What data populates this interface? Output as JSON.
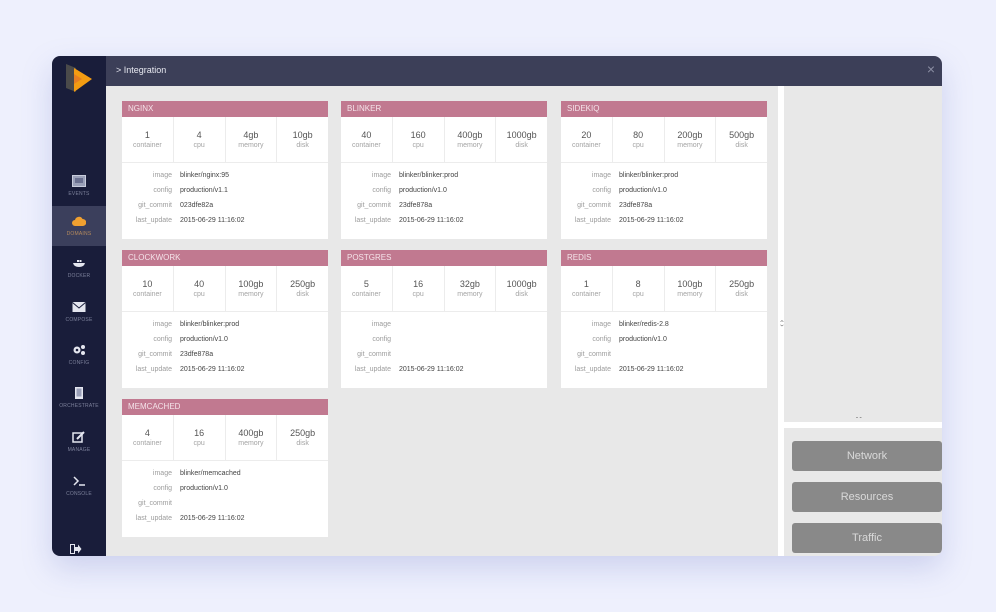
{
  "header": {
    "breadcrumb": "> Integration",
    "close_icon": "×"
  },
  "sidebar": {
    "items": [
      {
        "label": "EVENTS",
        "icon": "events-icon"
      },
      {
        "label": "DOMAINS",
        "icon": "cloud-icon",
        "active": true
      },
      {
        "label": "DOCKER",
        "icon": "docker-icon"
      },
      {
        "label": "COMPOSE",
        "icon": "envelope-icon"
      },
      {
        "label": "CONFIG",
        "icon": "gears-icon"
      },
      {
        "label": "ORCHESTRATE",
        "icon": "tablet-icon"
      },
      {
        "label": "MANAGE",
        "icon": "edit-icon"
      },
      {
        "label": "CONSOLE",
        "icon": "terminal-icon"
      }
    ],
    "logout_icon": "logout-icon"
  },
  "stat_labels": [
    "container",
    "cpu",
    "memory",
    "disk"
  ],
  "detail_labels": [
    "image",
    "config",
    "git_commit",
    "last_update"
  ],
  "services": [
    {
      "name": "NGINX",
      "container": "1",
      "cpu": "4",
      "memory": "4gb",
      "disk": "10gb",
      "image": "blinker/nginx:95",
      "config": "production/v1.1",
      "git_commit": "023dfe82a",
      "last_update": "2015-06-29 11:16:02"
    },
    {
      "name": "BLINKER",
      "container": "40",
      "cpu": "160",
      "memory": "400gb",
      "disk": "1000gb",
      "image": "blinker/blinker:prod",
      "config": "production/v1.0",
      "git_commit": "23dfe878a",
      "last_update": "2015-06-29 11:16:02"
    },
    {
      "name": "SIDEKIQ",
      "container": "20",
      "cpu": "80",
      "memory": "200gb",
      "disk": "500gb",
      "image": "blinker/blinker:prod",
      "config": "production/v1.0",
      "git_commit": "23dfe878a",
      "last_update": "2015-06-29 11:16:02"
    },
    {
      "name": "CLOCKWORK",
      "container": "10",
      "cpu": "40",
      "memory": "100gb",
      "disk": "250gb",
      "image": "blinker/blinker:prod",
      "config": "production/v1.0",
      "git_commit": "23dfe878a",
      "last_update": "2015-06-29 11:16:02"
    },
    {
      "name": "POSTGRES",
      "container": "5",
      "cpu": "16",
      "memory": "32gb",
      "disk": "1000gb",
      "image": "",
      "config": "",
      "git_commit": "",
      "last_update": "2015-06-29 11:16:02"
    },
    {
      "name": "REDIS",
      "container": "1",
      "cpu": "8",
      "memory": "100gb",
      "disk": "250gb",
      "image": "blinker/redis-2.8",
      "config": "production/v1.0",
      "git_commit": "",
      "last_update": "2015-06-29 11:16:02"
    },
    {
      "name": "MEMCACHED",
      "container": "4",
      "cpu": "16",
      "memory": "400gb",
      "disk": "250gb",
      "image": "blinker/memcached",
      "config": "production/v1.0",
      "git_commit": "",
      "last_update": "2015-06-29 11:16:02"
    }
  ],
  "right_panel": {
    "buttons": [
      "Network",
      "Resources",
      "Traffic"
    ],
    "v_splitter_handle": "‹ ›",
    "h_splitter_handle": "ˆ ˇ"
  },
  "colors": {
    "sidebar_bg": "#191d3a",
    "topbar_bg": "#3c3f58",
    "card_header": "#c17990",
    "active_icon": "#f0a030",
    "button_bg": "#898989"
  }
}
